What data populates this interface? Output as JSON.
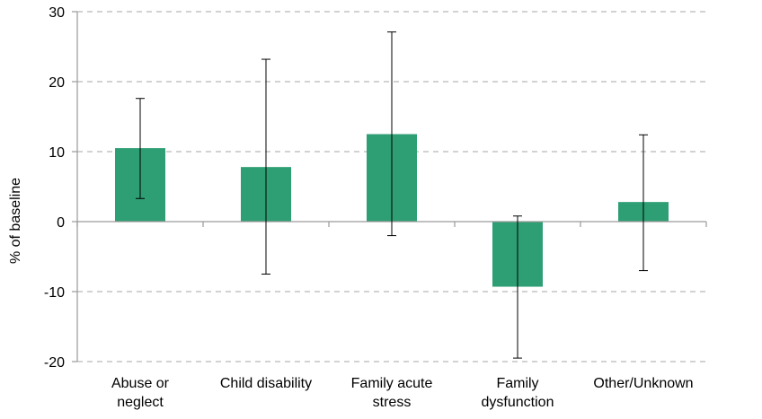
{
  "chart_data": {
    "type": "bar",
    "title": "",
    "xlabel": "",
    "ylabel": "% of baseline",
    "ylim": [
      -20,
      30
    ],
    "yticks": [
      30,
      20,
      10,
      0,
      -10,
      -20
    ],
    "grid": true,
    "categories": [
      [
        "Abuse or",
        "neglect"
      ],
      [
        "Child disability"
      ],
      [
        "Family acute",
        "stress"
      ],
      [
        "Family",
        "dysfunction"
      ],
      [
        "Other/Unknown"
      ]
    ],
    "values": [
      10.5,
      7.8,
      12.5,
      -9.3,
      2.8
    ],
    "error_low": [
      3.3,
      -7.5,
      -2.0,
      -19.5,
      -7.0
    ],
    "error_high": [
      17.6,
      23.2,
      27.1,
      0.8,
      12.4
    ],
    "colors": {
      "bar": "#2e9e74",
      "axis": "#9a9a9a",
      "grid": "#b8b8b8",
      "error": "#000000"
    }
  }
}
